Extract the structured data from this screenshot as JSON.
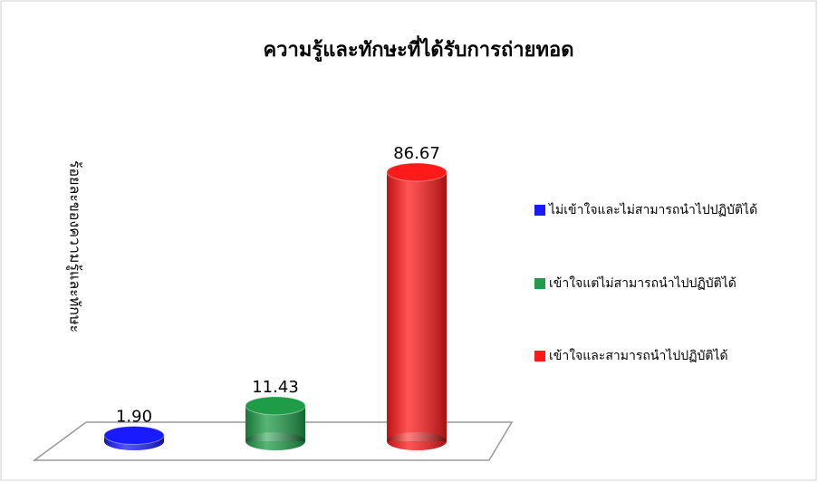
{
  "chart_data": {
    "type": "bar3d",
    "title": "ความรู้และทักษะที่ได้รับการถ่ายทอด",
    "y_label": "ร้อยละของความรู้และทักษะ",
    "categories": [
      "ไม่เข้าใจและไม่สามารถนำไปปฏิบัติได้",
      "เข้าใจแต่ไม่สามารถนำไปปฏิบัติได้",
      "เข้าใจและสามารถนำไปปฏิบัติได้"
    ],
    "values": [
      1.9,
      11.43,
      86.67
    ],
    "value_labels": [
      "1.90",
      "11.43",
      "86.67"
    ],
    "colors": [
      "#1a1aff",
      "#1e9c48",
      "#ff1a1a"
    ],
    "legend": "right"
  }
}
